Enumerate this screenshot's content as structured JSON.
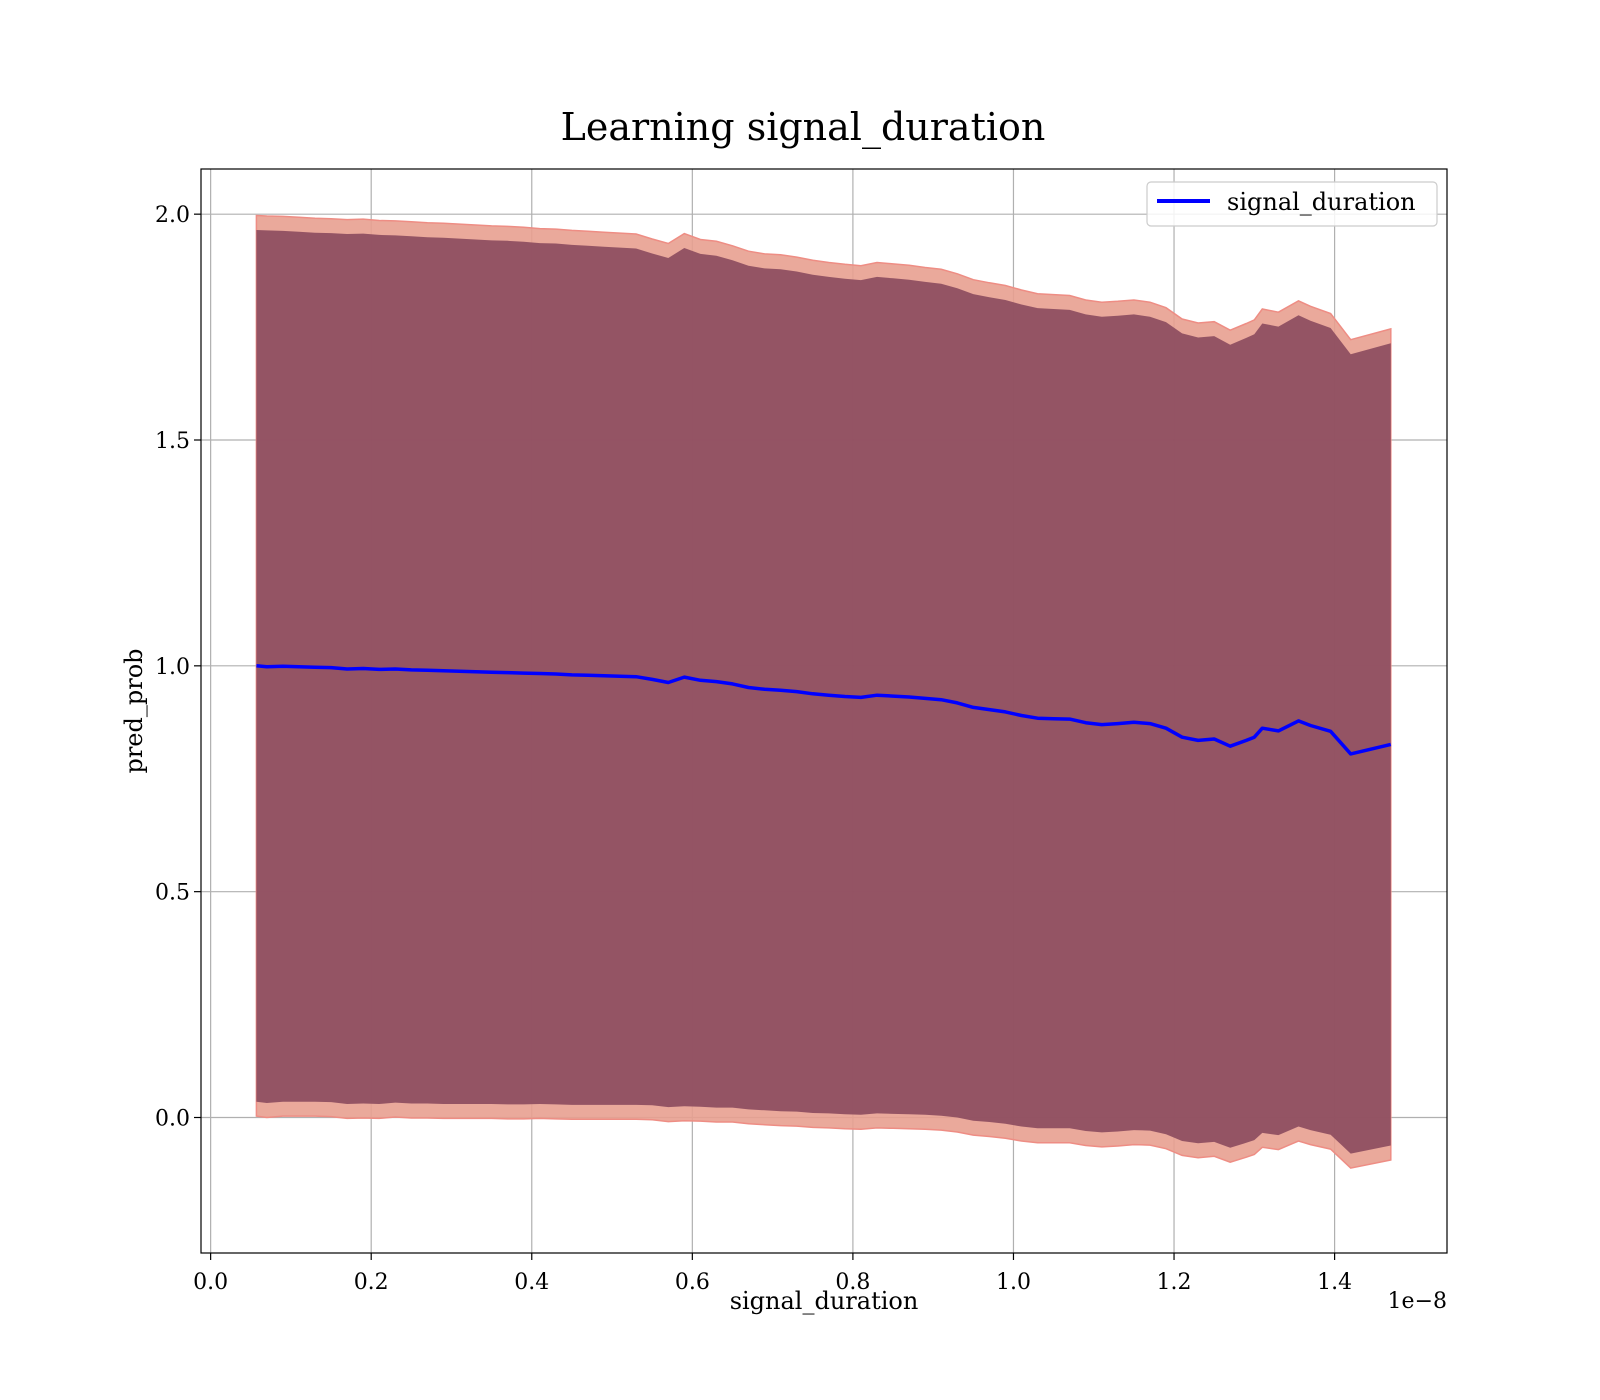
{
  "chart_data": {
    "type": "line",
    "title": "Learning signal_duration",
    "xlabel": "signal_duration",
    "ylabel": "pred_prob",
    "x_offset_label": "1e−8",
    "xlim": [
      -0.012,
      1.54
    ],
    "ylim": [
      -0.3,
      2.1
    ],
    "x_ticks": [
      0.0,
      0.2,
      0.4,
      0.6,
      0.8,
      1.0,
      1.2,
      1.4
    ],
    "x_tick_labels": [
      "0.0",
      "0.2",
      "0.4",
      "0.6",
      "0.8",
      "1.0",
      "1.2",
      "1.4"
    ],
    "y_ticks": [
      0.0,
      0.5,
      1.0,
      1.5,
      2.0
    ],
    "y_tick_labels": [
      "0.0",
      "0.5",
      "1.0",
      "1.5",
      "2.0"
    ],
    "grid": true,
    "legend": {
      "position": "upper-right",
      "entries": [
        "signal_duration"
      ]
    },
    "colors": {
      "line": "#0000ff",
      "outer_band": "#e8a090",
      "inner_band": "#8b4a5e"
    },
    "series": [
      {
        "name": "signal_duration",
        "x": [
          0.057,
          0.07,
          0.09,
          0.11,
          0.13,
          0.15,
          0.17,
          0.19,
          0.21,
          0.23,
          0.25,
          0.27,
          0.29,
          0.31,
          0.33,
          0.35,
          0.37,
          0.39,
          0.41,
          0.43,
          0.45,
          0.47,
          0.49,
          0.51,
          0.53,
          0.55,
          0.57,
          0.59,
          0.61,
          0.63,
          0.65,
          0.67,
          0.69,
          0.71,
          0.73,
          0.75,
          0.77,
          0.79,
          0.81,
          0.83,
          0.85,
          0.87,
          0.89,
          0.91,
          0.93,
          0.95,
          0.97,
          0.99,
          1.01,
          1.03,
          1.05,
          1.07,
          1.09,
          1.11,
          1.13,
          1.15,
          1.17,
          1.19,
          1.21,
          1.23,
          1.25,
          1.27,
          1.29,
          1.3,
          1.31,
          1.33,
          1.355,
          1.37,
          1.395,
          1.42,
          1.47
        ],
        "y": [
          1.0,
          0.998,
          0.999,
          0.998,
          0.997,
          0.996,
          0.993,
          0.994,
          0.992,
          0.993,
          0.991,
          0.99,
          0.989,
          0.988,
          0.987,
          0.986,
          0.985,
          0.984,
          0.983,
          0.982,
          0.98,
          0.979,
          0.978,
          0.977,
          0.976,
          0.97,
          0.963,
          0.975,
          0.968,
          0.965,
          0.96,
          0.952,
          0.948,
          0.946,
          0.943,
          0.938,
          0.935,
          0.932,
          0.93,
          0.935,
          0.933,
          0.931,
          0.928,
          0.925,
          0.918,
          0.908,
          0.903,
          0.898,
          0.89,
          0.884,
          0.883,
          0.882,
          0.874,
          0.87,
          0.872,
          0.875,
          0.872,
          0.862,
          0.842,
          0.835,
          0.838,
          0.822,
          0.835,
          0.842,
          0.862,
          0.856,
          0.878,
          0.868,
          0.855,
          0.805,
          0.826
        ],
        "outer_upper": [
          1.997,
          1.996,
          1.995,
          1.993,
          1.991,
          1.99,
          1.988,
          1.989,
          1.986,
          1.985,
          1.983,
          1.981,
          1.98,
          1.978,
          1.976,
          1.974,
          1.973,
          1.971,
          1.968,
          1.967,
          1.964,
          1.962,
          1.96,
          1.958,
          1.956,
          1.945,
          1.935,
          1.957,
          1.944,
          1.94,
          1.93,
          1.918,
          1.912,
          1.91,
          1.905,
          1.898,
          1.893,
          1.889,
          1.886,
          1.893,
          1.89,
          1.887,
          1.882,
          1.878,
          1.868,
          1.855,
          1.848,
          1.842,
          1.832,
          1.824,
          1.822,
          1.82,
          1.81,
          1.805,
          1.807,
          1.81,
          1.805,
          1.793,
          1.768,
          1.759,
          1.762,
          1.743,
          1.758,
          1.766,
          1.79,
          1.783,
          1.808,
          1.796,
          1.78,
          1.722,
          1.746
        ],
        "inner_upper": [
          1.965,
          1.964,
          1.963,
          1.961,
          1.959,
          1.958,
          1.956,
          1.957,
          1.954,
          1.953,
          1.951,
          1.949,
          1.948,
          1.946,
          1.944,
          1.942,
          1.941,
          1.939,
          1.936,
          1.935,
          1.932,
          1.93,
          1.928,
          1.926,
          1.924,
          1.913,
          1.903,
          1.925,
          1.912,
          1.908,
          1.898,
          1.886,
          1.88,
          1.878,
          1.873,
          1.866,
          1.861,
          1.857,
          1.854,
          1.861,
          1.858,
          1.855,
          1.85,
          1.846,
          1.836,
          1.823,
          1.816,
          1.81,
          1.8,
          1.792,
          1.79,
          1.788,
          1.778,
          1.773,
          1.775,
          1.778,
          1.773,
          1.761,
          1.736,
          1.727,
          1.73,
          1.711,
          1.726,
          1.734,
          1.758,
          1.751,
          1.776,
          1.764,
          1.748,
          1.69,
          1.714
        ],
        "inner_lower": [
          0.035,
          0.032,
          0.035,
          0.035,
          0.035,
          0.034,
          0.03,
          0.031,
          0.03,
          0.033,
          0.031,
          0.031,
          0.03,
          0.03,
          0.03,
          0.03,
          0.029,
          0.029,
          0.03,
          0.029,
          0.028,
          0.028,
          0.028,
          0.028,
          0.028,
          0.027,
          0.023,
          0.025,
          0.024,
          0.022,
          0.022,
          0.018,
          0.016,
          0.014,
          0.013,
          0.01,
          0.009,
          0.007,
          0.006,
          0.009,
          0.008,
          0.007,
          0.006,
          0.004,
          0.0,
          -0.007,
          -0.01,
          -0.014,
          -0.02,
          -0.024,
          -0.024,
          -0.024,
          -0.03,
          -0.033,
          -0.031,
          -0.028,
          -0.029,
          -0.037,
          -0.052,
          -0.057,
          -0.054,
          -0.067,
          -0.056,
          -0.05,
          -0.034,
          -0.039,
          -0.02,
          -0.028,
          -0.038,
          -0.08,
          -0.062
        ],
        "outer_lower": [
          0.003,
          0.0,
          0.003,
          0.003,
          0.003,
          0.002,
          -0.002,
          -0.001,
          -0.002,
          0.001,
          -0.001,
          -0.001,
          -0.002,
          -0.002,
          -0.002,
          -0.002,
          -0.003,
          -0.003,
          -0.002,
          -0.003,
          -0.004,
          -0.004,
          -0.004,
          -0.004,
          -0.004,
          -0.005,
          -0.009,
          -0.007,
          -0.008,
          -0.01,
          -0.01,
          -0.014,
          -0.016,
          -0.018,
          -0.019,
          -0.022,
          -0.023,
          -0.025,
          -0.026,
          -0.023,
          -0.024,
          -0.025,
          -0.026,
          -0.028,
          -0.032,
          -0.039,
          -0.042,
          -0.046,
          -0.052,
          -0.056,
          -0.056,
          -0.056,
          -0.062,
          -0.065,
          -0.063,
          -0.06,
          -0.061,
          -0.069,
          -0.084,
          -0.089,
          -0.086,
          -0.099,
          -0.088,
          -0.082,
          -0.066,
          -0.071,
          -0.052,
          -0.06,
          -0.07,
          -0.112,
          -0.094
        ]
      }
    ]
  }
}
